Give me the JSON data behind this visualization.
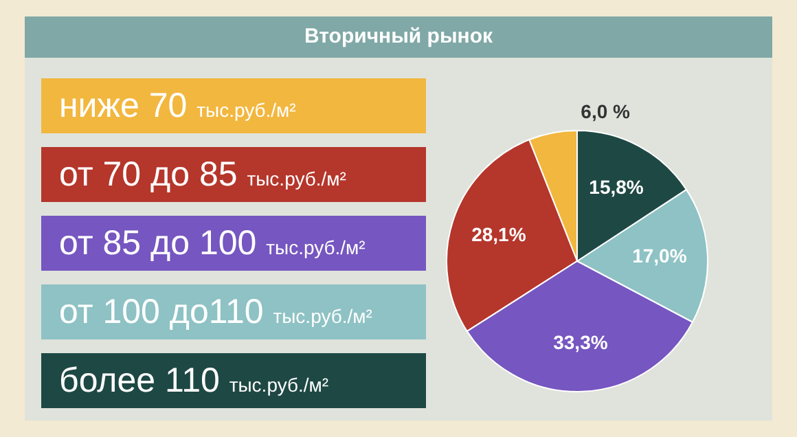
{
  "chart_data": {
    "type": "pie",
    "title": "Вторичный рынок",
    "categories": [
      "ниже 70 тыс.руб./м²",
      "от 70 до 85 тыс.руб./м²",
      "от 85 до 100 тыс.руб./м²",
      "от 100 до110 тыс.руб./м²",
      "более 110 тыс.руб./м²"
    ],
    "values": [
      6.0,
      28.1,
      33.3,
      17.0,
      15.8
    ],
    "colors": [
      "#f2b73f",
      "#b5362b",
      "#7656c0",
      "#8ec2c4",
      "#1e4844"
    ],
    "value_labels": [
      "6,0 %",
      "28,1%",
      "33,3%",
      "17,0%",
      "15,8%"
    ],
    "legend": "left"
  }
}
